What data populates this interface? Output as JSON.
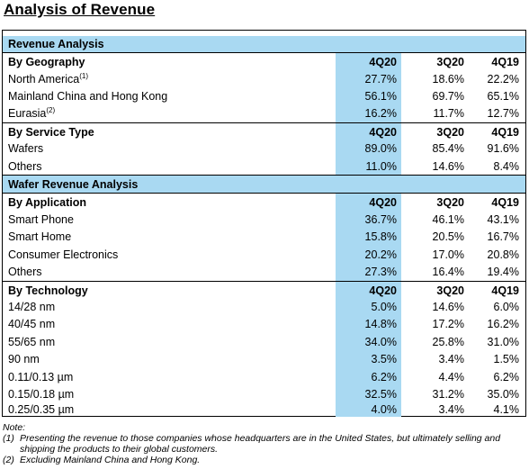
{
  "title": "Analysis of Revenue",
  "columns": [
    "4Q20",
    "3Q20",
    "4Q19"
  ],
  "sections": {
    "revenue_analysis": "Revenue Analysis",
    "wafer_revenue_analysis": "Wafer Revenue Analysis"
  },
  "groups": {
    "geography": "By Geography",
    "service_type": "By Service Type",
    "application": "By Application",
    "technology": "By Technology"
  },
  "rows": {
    "north_america": {
      "label": "North America",
      "sup": "(1)",
      "v": [
        "27.7%",
        "18.6%",
        "22.2%"
      ]
    },
    "mainland": {
      "label": "Mainland China and Hong Kong",
      "v": [
        "56.1%",
        "69.7%",
        "65.1%"
      ]
    },
    "eurasia": {
      "label": "Eurasia",
      "sup": "(2)",
      "v": [
        "16.2%",
        "11.7%",
        "12.7%"
      ]
    },
    "wafers": {
      "label": "Wafers",
      "v": [
        "89.0%",
        "85.4%",
        "91.6%"
      ]
    },
    "others_service": {
      "label": "Others",
      "v": [
        "11.0%",
        "14.6%",
        "8.4%"
      ]
    },
    "smart_phone": {
      "label": "Smart Phone",
      "v": [
        "36.7%",
        "46.1%",
        "43.1%"
      ]
    },
    "smart_home": {
      "label": "Smart Home",
      "v": [
        "15.8%",
        "20.5%",
        "16.7%"
      ]
    },
    "consumer_electronics": {
      "label": "Consumer Electronics",
      "v": [
        "20.2%",
        "17.0%",
        "20.8%"
      ]
    },
    "others_app": {
      "label": "Others",
      "v": [
        "27.3%",
        "16.4%",
        "19.4%"
      ]
    },
    "nm14_28": {
      "label": "14/28 nm",
      "v": [
        "5.0%",
        "14.6%",
        "6.0%"
      ]
    },
    "nm40_45": {
      "label": "40/45 nm",
      "v": [
        "14.8%",
        "17.2%",
        "16.2%"
      ]
    },
    "nm55_65": {
      "label": "55/65 nm",
      "v": [
        "34.0%",
        "25.8%",
        "31.0%"
      ]
    },
    "nm90": {
      "label": "90 nm",
      "v": [
        "3.5%",
        "3.4%",
        "1.5%"
      ]
    },
    "um011_013": {
      "label": "0.11/0.13 µm",
      "v": [
        "6.2%",
        "4.4%",
        "6.2%"
      ]
    },
    "um015_018": {
      "label": "0.15/0.18 µm",
      "v": [
        "32.5%",
        "31.2%",
        "35.0%"
      ]
    },
    "um025_035": {
      "label": "0.25/0.35 µm",
      "v": [
        "4.0%",
        "3.4%",
        "4.1%"
      ]
    }
  },
  "notes": {
    "heading": "Note:",
    "n1_key": "(1)",
    "n1_text": "Presenting the revenue to those companies whose headquarters are in the United States, but ultimately selling and shipping the products to their global customers.",
    "n2_key": "(2)",
    "n2_text": "Excluding Mainland China and Hong Kong."
  }
}
